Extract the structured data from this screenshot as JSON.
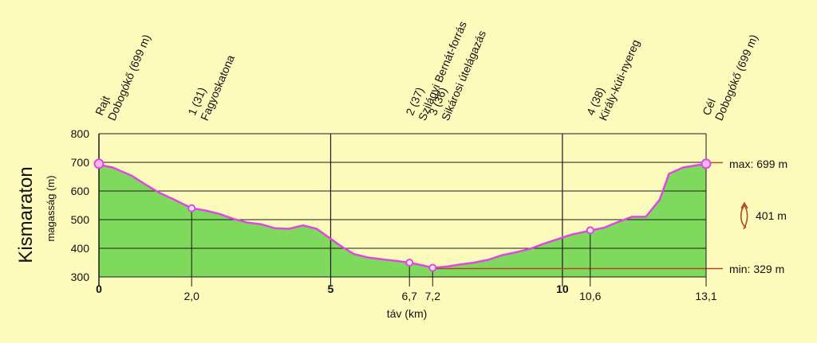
{
  "chart_data": {
    "type": "area",
    "title": "Kismaraton",
    "ylabel": "magasság (m)",
    "xlabel": "táv (km)",
    "xlim": [
      0,
      13.1
    ],
    "ylim": [
      300,
      800
    ],
    "y_ticks": [
      "800",
      "700",
      "600",
      "500",
      "400",
      "300"
    ],
    "y_tick_values": [
      800,
      700,
      600,
      500,
      400,
      300
    ],
    "x_major_ticks": [
      {
        "value": 0,
        "label": "0"
      },
      {
        "value": 5,
        "label": "5"
      },
      {
        "value": 10,
        "label": "10"
      }
    ],
    "x_minor_ticks": [
      {
        "value": 2.0,
        "label": "2,0"
      },
      {
        "value": 6.7,
        "label": "6,7"
      },
      {
        "value": 7.2,
        "label": "7,2"
      },
      {
        "value": 10.6,
        "label": "10,6"
      },
      {
        "value": 13.1,
        "label": "13,1"
      }
    ],
    "max_label": "max: 699 m",
    "min_label": "min: 329 m",
    "max_value": 699,
    "min_value": 329,
    "ascent_label": "401 m",
    "waypoints": [
      {
        "x": 0,
        "y": 695,
        "lines": [
          "Rajt",
          "Dobogókő (699 m)"
        ]
      },
      {
        "x": 2.0,
        "y": 540,
        "lines": [
          "1 (31)",
          "Fagyoskatona"
        ]
      },
      {
        "x": 6.7,
        "y": 350,
        "lines": [
          "2 (37)",
          "Szilágyi Bernát-forrás"
        ]
      },
      {
        "x": 7.2,
        "y": 332,
        "lines": [
          "3 (36)",
          "Sikárosi útelágazás"
        ]
      },
      {
        "x": 10.6,
        "y": 463,
        "lines": [
          "4 (38)",
          "Király-kúti-nyereg"
        ]
      },
      {
        "x": 13.1,
        "y": 695,
        "lines": [
          "Cél",
          "Dobogókő (699 m)"
        ]
      }
    ],
    "series": [
      {
        "x": [
          0,
          0.3,
          0.7,
          1.0,
          1.3,
          1.6,
          2.0,
          2.3,
          2.6,
          2.9,
          3.2,
          3.5,
          3.8,
          4.1,
          4.4,
          4.7,
          4.9,
          5.2,
          5.5,
          5.8,
          6.1,
          6.4,
          6.7,
          7.0,
          7.2,
          7.5,
          7.8,
          8.1,
          8.4,
          8.7,
          9.0,
          9.3,
          9.6,
          9.9,
          10.2,
          10.6,
          10.9,
          11.2,
          11.5,
          11.8,
          12.1,
          12.3,
          12.6,
          12.9,
          13.1
        ],
        "y": [
          692,
          682,
          654,
          623,
          594,
          572,
          540,
          532,
          520,
          503,
          490,
          484,
          470,
          468,
          480,
          468,
          445,
          410,
          380,
          368,
          362,
          356,
          350,
          340,
          332,
          336,
          344,
          350,
          360,
          376,
          386,
          398,
          416,
          432,
          448,
          462,
          472,
          492,
          510,
          510,
          570,
          660,
          682,
          690,
          695
        ]
      }
    ],
    "colors": {
      "background": "#fdfbbb",
      "fill": "#7ed95c",
      "line": "#e046e6",
      "grid": "#1a1a1a",
      "minmax_line": "#b04a1e",
      "marker": "#e046e6"
    }
  }
}
